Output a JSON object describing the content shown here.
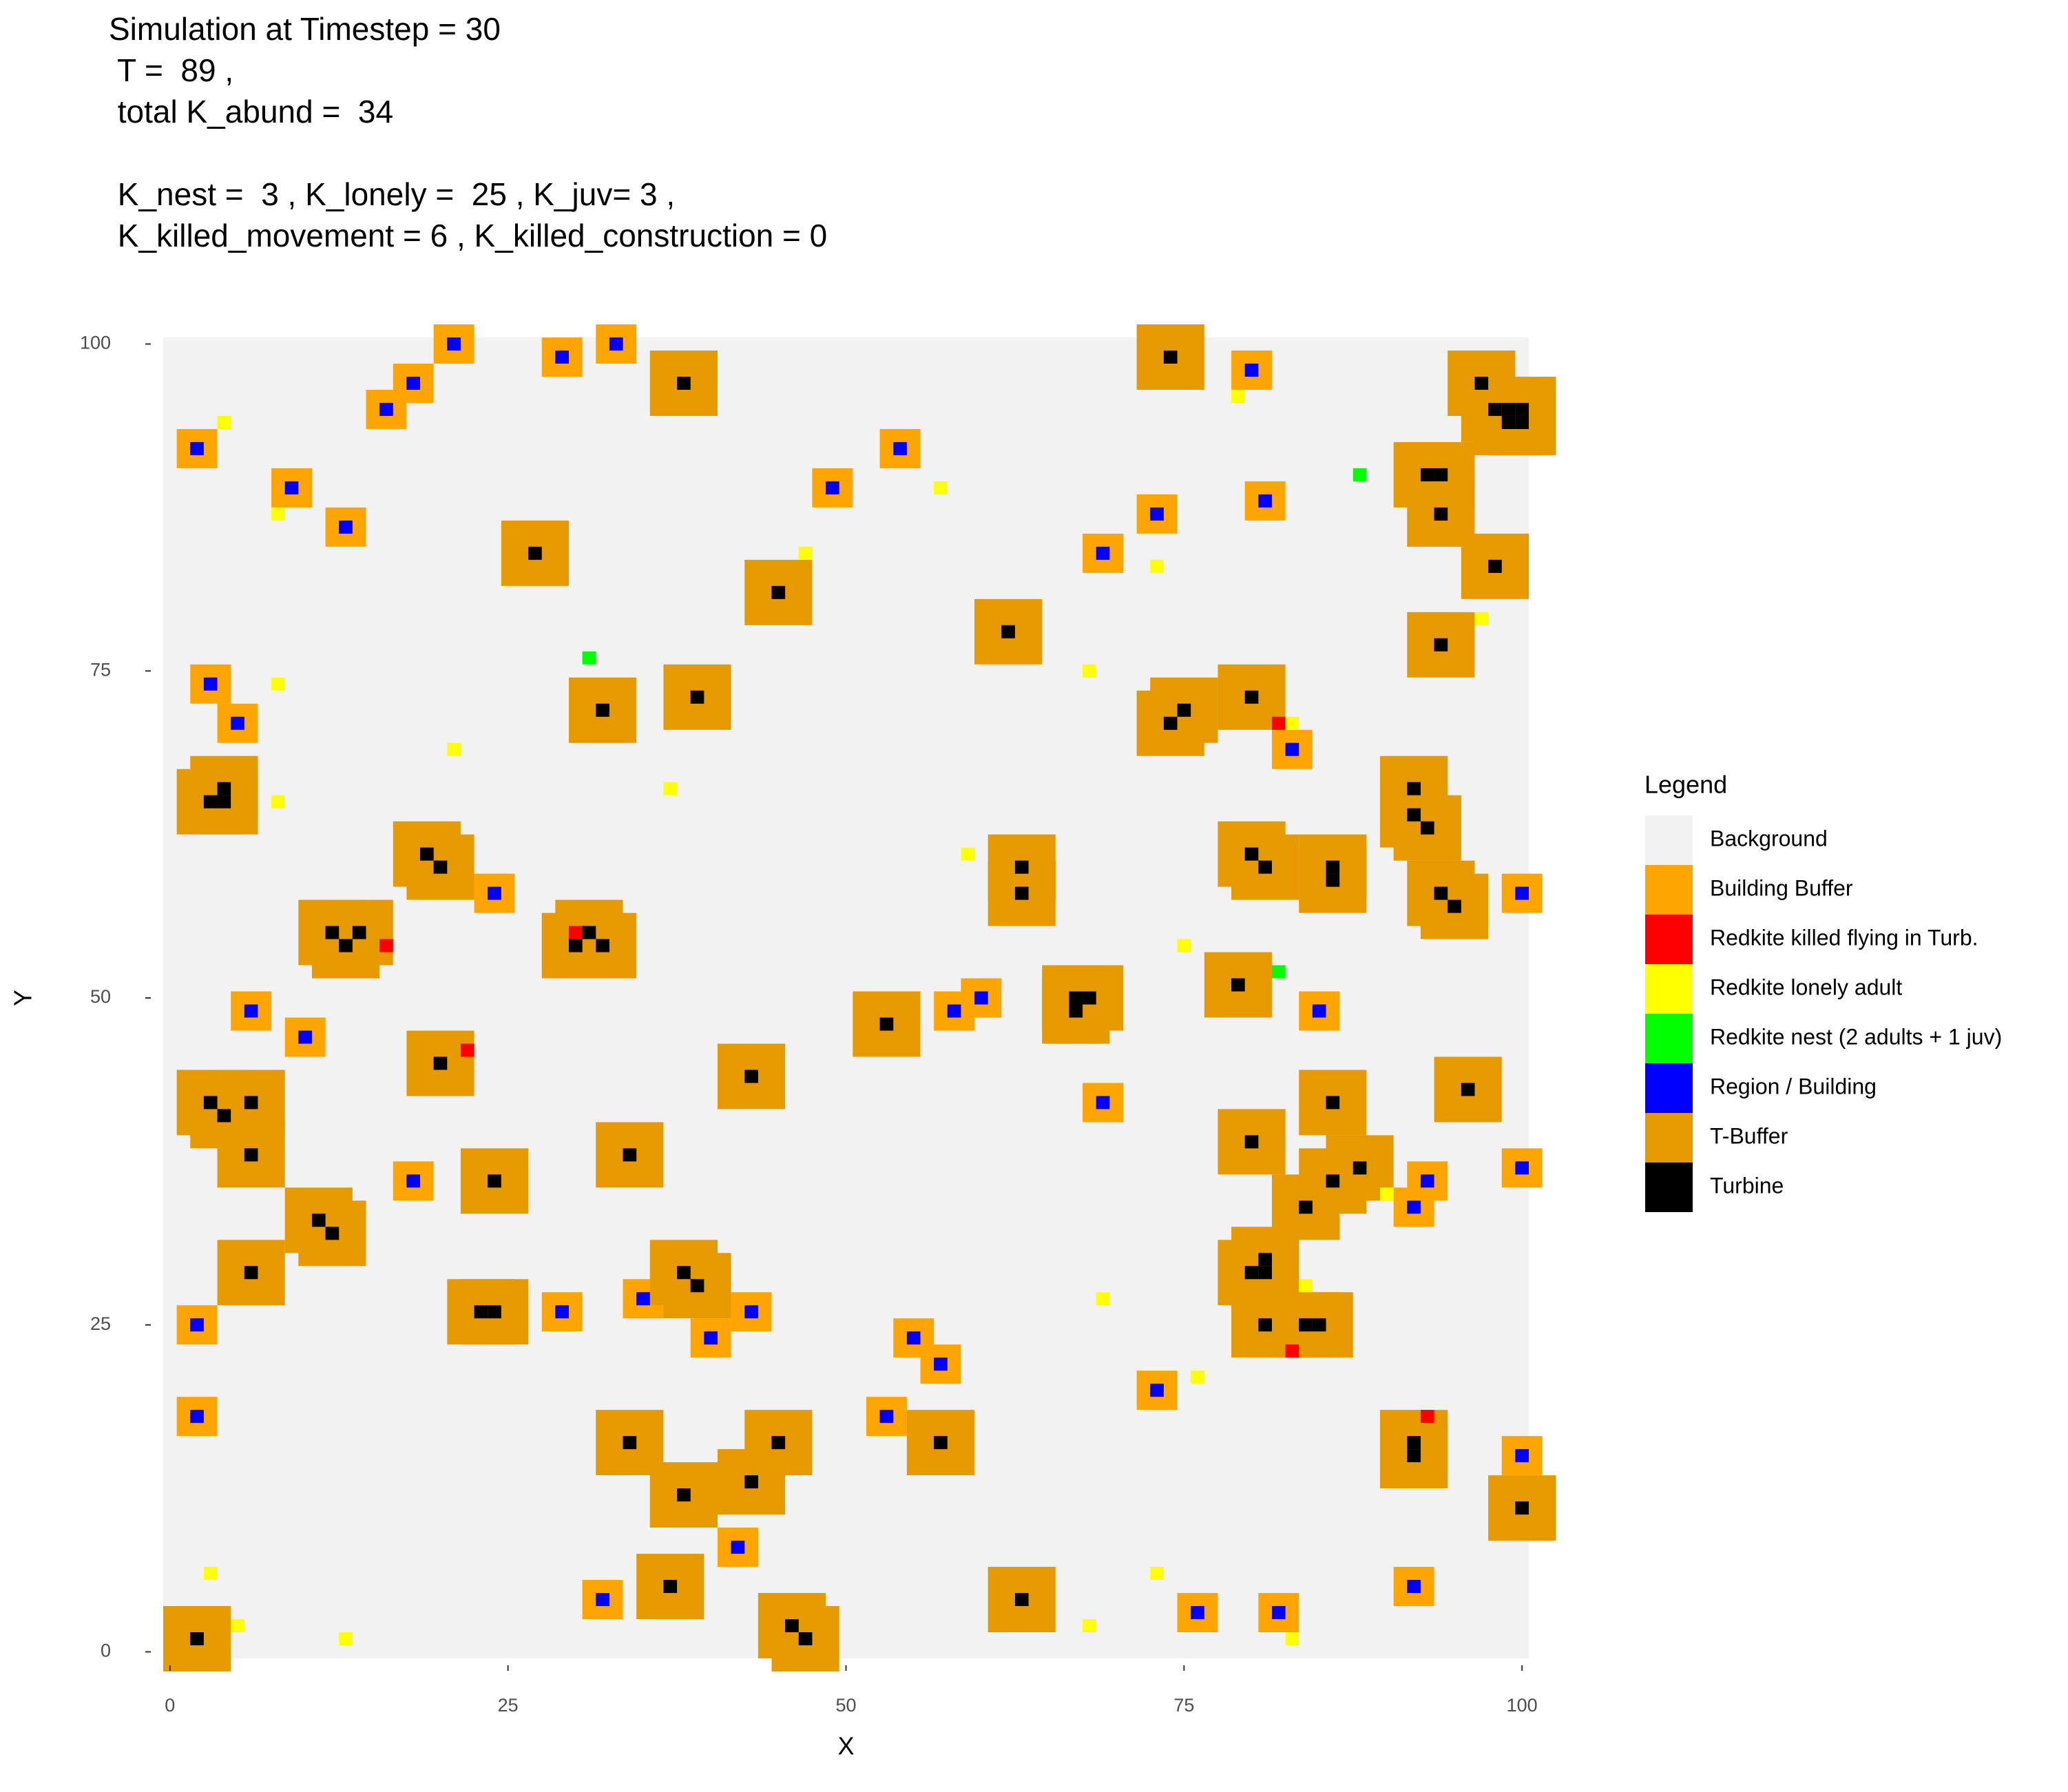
{
  "chart_data": {
    "type": "tile",
    "title": [
      "Simulation at Timestep = 30",
      " T =  89 ,",
      " total K_abund =  34",
      " K_nest =  3 , K_lonely =  25 , K_juv= 3 ,",
      " K_killed_movement = 6 , K_killed_construction = 0"
    ],
    "x_label": "X",
    "y_label": "Y",
    "legend_title": "Legend",
    "xlim": [
      -0.5,
      100.5
    ],
    "ylim": [
      -0.5,
      100.5
    ],
    "xticks": [
      0,
      25,
      50,
      75,
      100
    ],
    "yticks": [
      0,
      25,
      50,
      75,
      100
    ],
    "series": [
      {
        "name": "Background",
        "color": "#F2F2F2"
      },
      {
        "name": "Building Buffer",
        "color": "#FFA500",
        "size": 3,
        "x": [
          21,
          29,
          33,
          18,
          16,
          2,
          54,
          80,
          9,
          49,
          81,
          73,
          13,
          69,
          3,
          5,
          83,
          24,
          100,
          6,
          60,
          58,
          85,
          10,
          69,
          18,
          93,
          92,
          100,
          2,
          29,
          35,
          43,
          40,
          55,
          57,
          73,
          2,
          53,
          100,
          42,
          32,
          76,
          82,
          92
        ],
        "y": [
          100,
          99,
          100,
          97,
          95,
          92,
          92,
          98,
          89,
          89,
          88,
          87,
          86,
          84,
          74,
          71,
          69,
          58,
          58,
          49,
          50,
          49,
          49,
          47,
          42,
          36,
          36,
          34,
          37,
          25,
          26,
          27,
          26,
          24,
          24,
          22,
          20,
          18,
          18,
          15,
          8,
          4,
          3,
          3,
          5
        ]
      },
      {
        "name": "Redkite killed flying in Turb.",
        "color": "#FF0000",
        "x": [
          82,
          16,
          30,
          22,
          83,
          93
        ],
        "y": [
          71,
          54,
          55,
          46,
          23,
          18
        ]
      },
      {
        "name": "Redkite lonely adult",
        "color": "#FFFF00",
        "x": [
          4,
          79,
          57,
          8,
          47,
          73,
          97,
          8,
          68,
          83,
          21,
          37,
          8,
          59,
          75,
          90,
          84,
          69,
          76,
          3,
          73,
          5,
          68,
          13,
          83
        ],
        "y": [
          94,
          96,
          89,
          87,
          84,
          83,
          79,
          74,
          75,
          71,
          69,
          66,
          65,
          61,
          54,
          35,
          28,
          27,
          21,
          6,
          6,
          2,
          2,
          1,
          1
        ]
      },
      {
        "name": "Redkite nest (2 adults + 1 juv)",
        "color": "#00FF00",
        "x": [
          88,
          31,
          82
        ],
        "y": [
          90,
          76,
          52
        ]
      },
      {
        "name": "Region / Building",
        "color": "#0000FF",
        "x": [
          21,
          29,
          33,
          18,
          16,
          2,
          54,
          80,
          9,
          49,
          81,
          73,
          13,
          69,
          3,
          5,
          83,
          24,
          100,
          6,
          60,
          58,
          85,
          10,
          69,
          18,
          93,
          92,
          100,
          2,
          29,
          35,
          43,
          40,
          55,
          57,
          73,
          2,
          53,
          100,
          42,
          32,
          76,
          82,
          92
        ],
        "y": [
          100,
          99,
          100,
          97,
          95,
          92,
          92,
          98,
          89,
          89,
          88,
          87,
          86,
          84,
          74,
          71,
          69,
          58,
          58,
          49,
          50,
          49,
          49,
          47,
          42,
          36,
          36,
          34,
          37,
          25,
          26,
          27,
          26,
          24,
          24,
          22,
          20,
          18,
          18,
          15,
          8,
          4,
          3,
          3,
          5
        ]
      },
      {
        "name": "T-Buffer",
        "color": "#E69A00",
        "size": 5,
        "x": [
          74,
          38,
          97,
          98,
          99,
          100,
          99,
          100,
          93,
          94,
          94,
          98,
          27,
          45,
          62,
          94,
          39,
          32,
          80,
          74,
          75,
          3,
          4,
          4,
          92,
          92,
          93,
          19,
          20,
          80,
          81,
          86,
          86,
          63,
          63,
          94,
          95,
          12,
          13,
          14,
          30,
          31,
          32,
          79,
          67,
          68,
          67,
          53,
          20,
          43,
          96,
          3,
          4,
          6,
          86,
          80,
          6,
          34,
          24,
          88,
          86,
          84,
          11,
          12,
          38,
          39,
          6,
          80,
          81,
          81,
          23,
          24,
          81,
          84,
          85,
          34,
          45,
          57,
          92,
          92,
          38,
          43,
          100,
          37,
          63,
          2,
          46,
          47
        ],
        "y": [
          99,
          97,
          97,
          95,
          94,
          94,
          95,
          95,
          90,
          90,
          87,
          83,
          84,
          81,
          78,
          77,
          73,
          72,
          73,
          71,
          72,
          65,
          65,
          66,
          66,
          64,
          63,
          61,
          60,
          61,
          60,
          60,
          59,
          60,
          58,
          58,
          57,
          55,
          54,
          55,
          54,
          55,
          54,
          51,
          50,
          50,
          49,
          48,
          45,
          44,
          43,
          42,
          41,
          42,
          42,
          39,
          38,
          38,
          36,
          37,
          36,
          34,
          33,
          32,
          29,
          28,
          29,
          29,
          29,
          30,
          26,
          26,
          25,
          25,
          25,
          16,
          16,
          16,
          16,
          15,
          12,
          13,
          11,
          5,
          4,
          1,
          2,
          1
        ]
      },
      {
        "name": "Turbine",
        "color": "#000000",
        "x": [
          74,
          38,
          97,
          98,
          99,
          100,
          99,
          100,
          93,
          94,
          94,
          98,
          27,
          45,
          62,
          94,
          39,
          32,
          80,
          74,
          75,
          3,
          4,
          4,
          92,
          92,
          93,
          19,
          20,
          80,
          81,
          86,
          86,
          63,
          63,
          94,
          95,
          12,
          13,
          14,
          30,
          31,
          32,
          79,
          67,
          68,
          67,
          53,
          20,
          43,
          96,
          3,
          4,
          6,
          86,
          80,
          6,
          34,
          24,
          88,
          86,
          84,
          11,
          12,
          38,
          39,
          6,
          80,
          81,
          81,
          23,
          24,
          81,
          84,
          85,
          34,
          45,
          57,
          92,
          92,
          38,
          43,
          100,
          37,
          63,
          2,
          46,
          47
        ],
        "y": [
          99,
          97,
          97,
          95,
          94,
          94,
          95,
          95,
          90,
          90,
          87,
          83,
          84,
          81,
          78,
          77,
          73,
          72,
          73,
          71,
          72,
          65,
          65,
          66,
          66,
          64,
          63,
          61,
          60,
          61,
          60,
          60,
          59,
          60,
          58,
          58,
          57,
          55,
          54,
          55,
          54,
          55,
          54,
          51,
          50,
          50,
          49,
          48,
          45,
          44,
          43,
          42,
          41,
          42,
          42,
          39,
          38,
          38,
          36,
          37,
          36,
          34,
          33,
          32,
          29,
          28,
          29,
          29,
          29,
          30,
          26,
          26,
          25,
          25,
          25,
          16,
          16,
          16,
          16,
          15,
          12,
          13,
          11,
          5,
          4,
          1,
          2,
          1
        ]
      }
    ]
  }
}
